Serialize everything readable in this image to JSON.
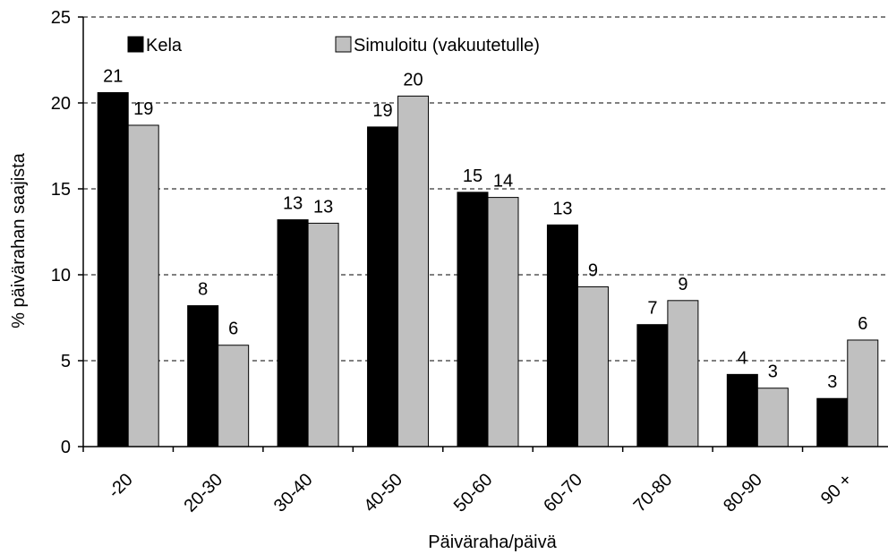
{
  "chart_data": {
    "type": "bar",
    "categories": [
      "-20",
      "20-30",
      "30-40",
      "40-50",
      "50-60",
      "60-70",
      "70-80",
      "80-90",
      "90 +"
    ],
    "series": [
      {
        "name": "Kela",
        "values": [
          20.6,
          8.2,
          13.2,
          18.6,
          14.8,
          12.9,
          7.1,
          4.2,
          2.8
        ],
        "labels": [
          "21",
          "8",
          "13",
          "19",
          "15",
          "13",
          "7",
          "4",
          "3"
        ],
        "color": "#000000"
      },
      {
        "name": "Simuloitu (vakuutetulle)",
        "values": [
          18.7,
          5.9,
          13.0,
          20.4,
          14.5,
          9.3,
          8.5,
          3.4,
          6.2
        ],
        "labels": [
          "19",
          "6",
          "13",
          "20",
          "14",
          "9",
          "9",
          "3",
          "6"
        ],
        "color": "#c0c0c0"
      }
    ],
    "xlabel": "Päiväraha/päivä",
    "ylabel": "% päivärahan saajista",
    "ylim": [
      0,
      25
    ],
    "yticks": [
      "0",
      "5",
      "10",
      "15",
      "20",
      "25"
    ],
    "grid": true,
    "legend_position": "top-left"
  }
}
